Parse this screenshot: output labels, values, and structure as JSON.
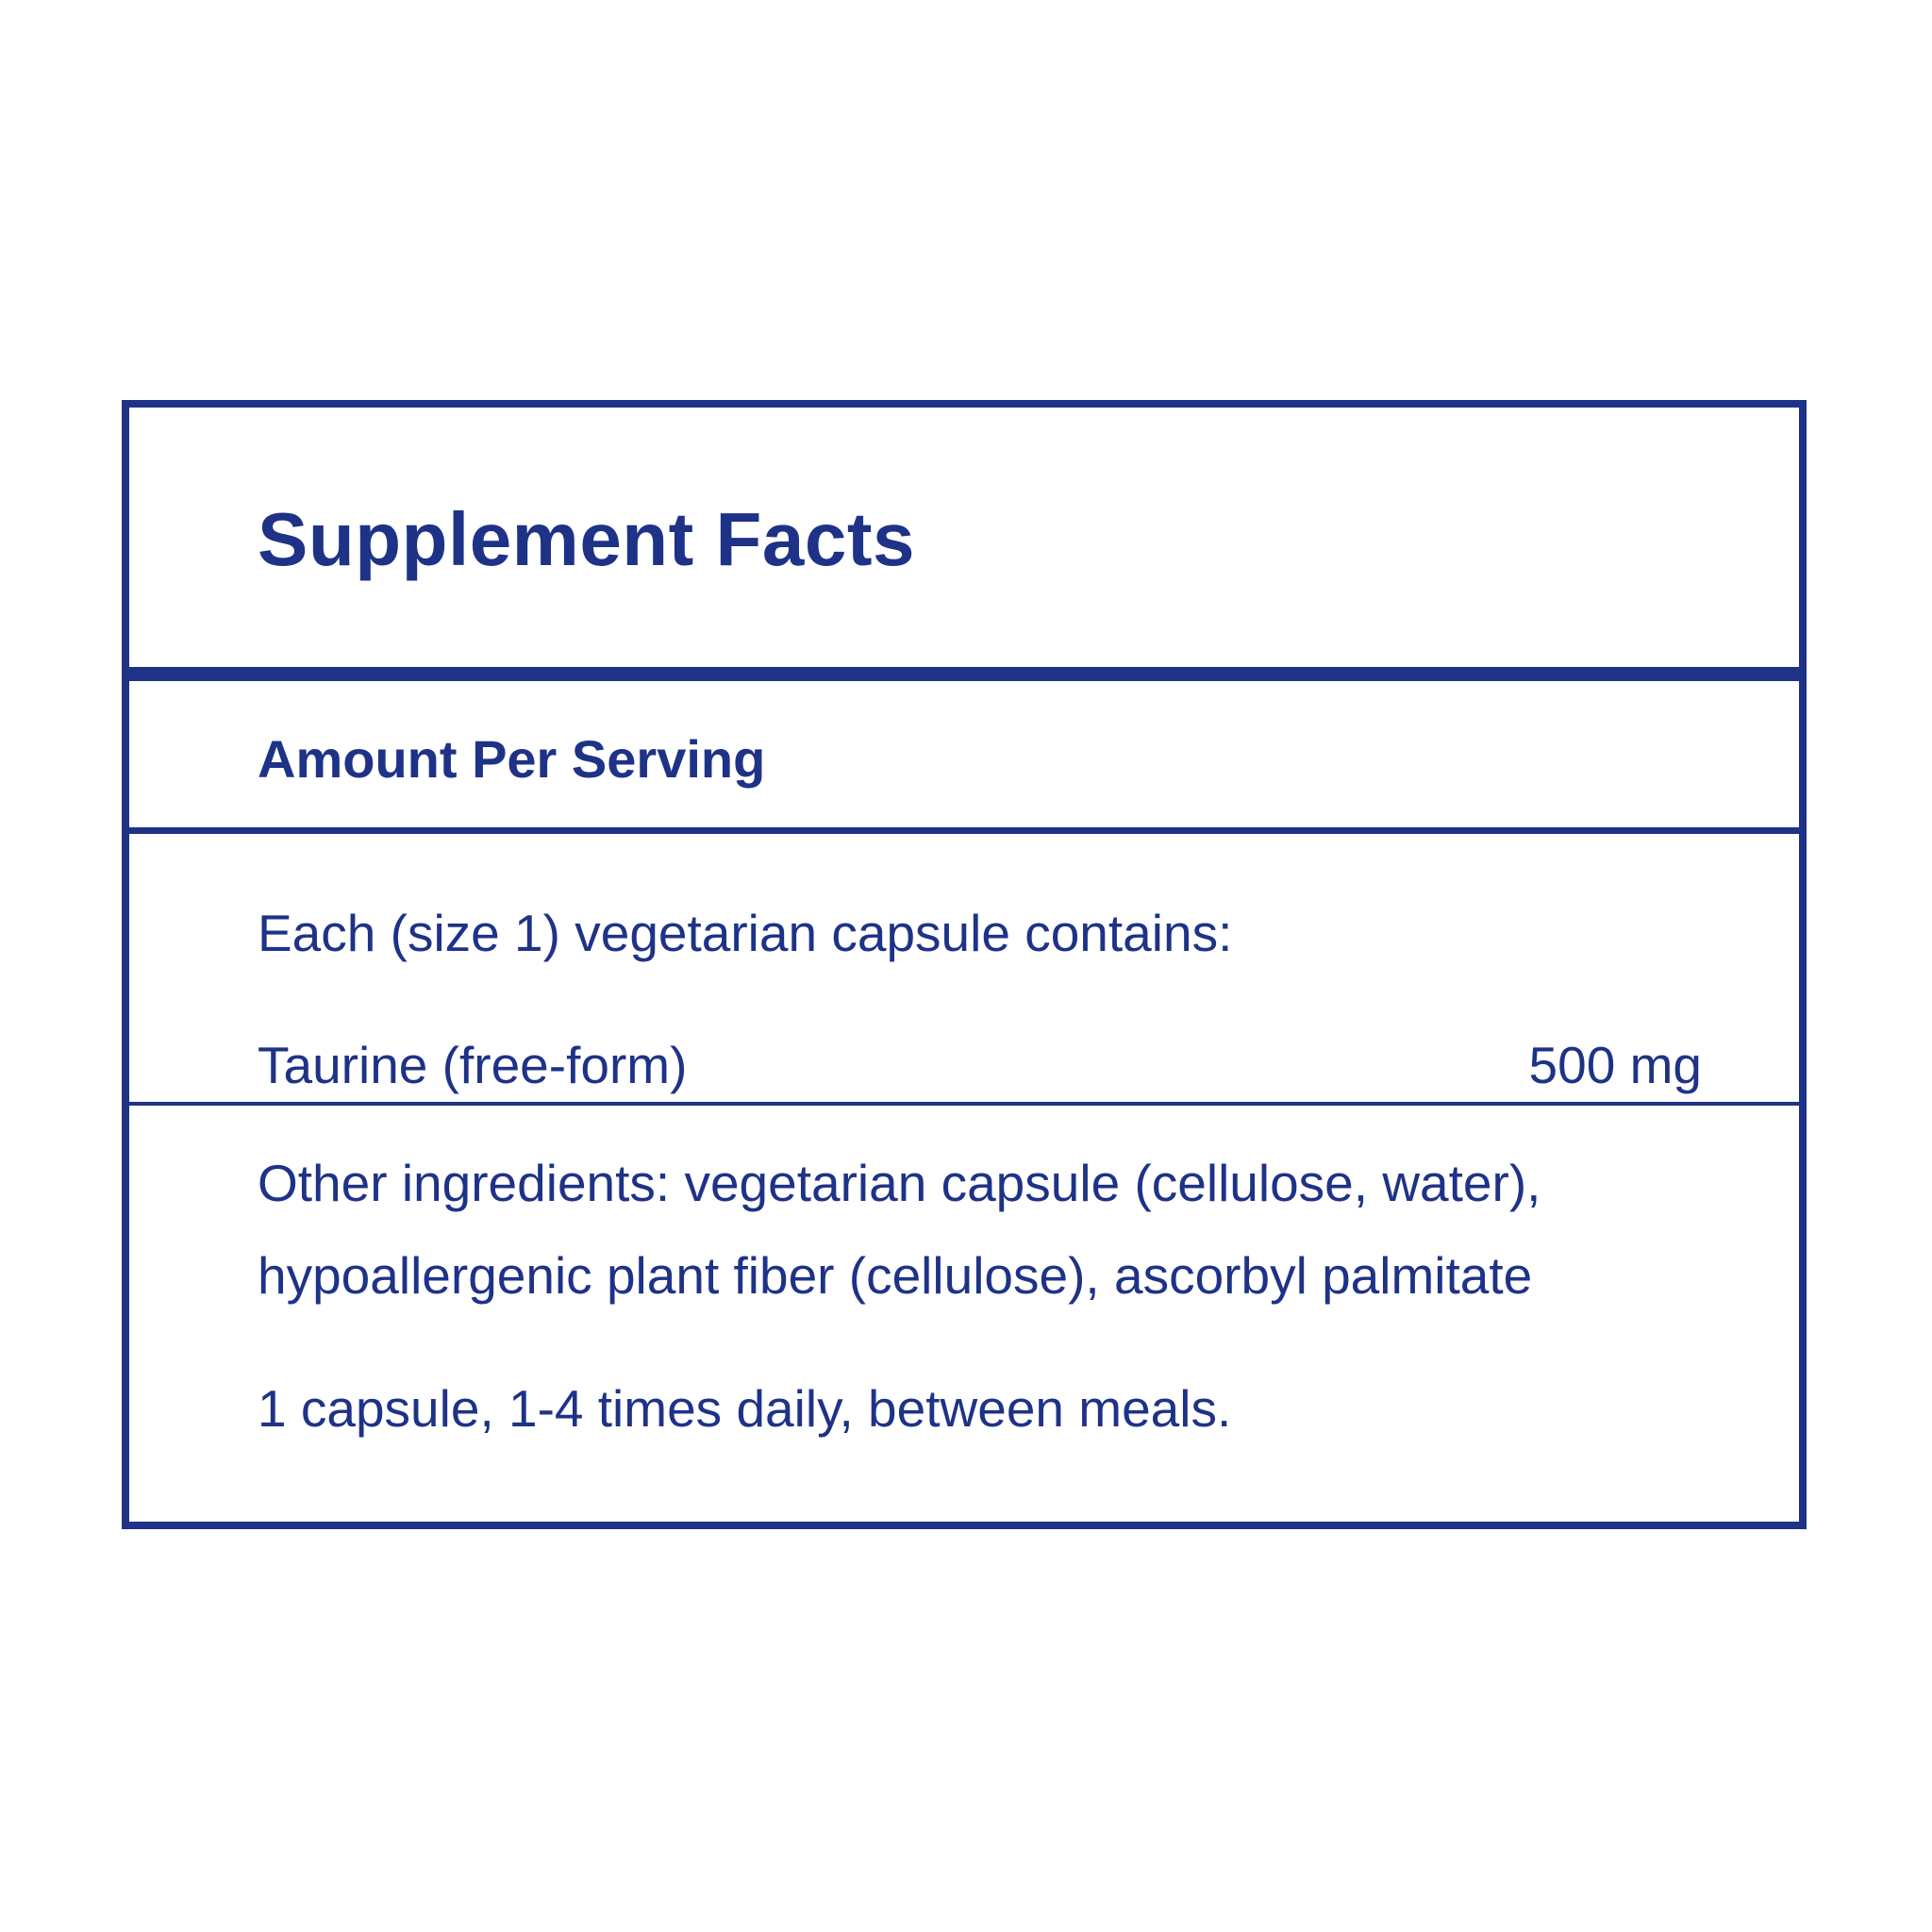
{
  "panel": {
    "title": "Supplement Facts",
    "amount_per_serving": "Amount Per Serving",
    "serving_description": "Each (size 1) vegetarian capsule contains:",
    "ingredients": [
      {
        "name": "Taurine (free-form)",
        "amount": "500 mg"
      }
    ],
    "other_ingredients_line1": "Other ingredients: vegetarian capsule (cellulose, water),",
    "other_ingredients_line2": "hypoallergenic plant fiber (cellulose), ascorbyl palmitate",
    "directions": "1 capsule, 1-4 times daily, between meals."
  },
  "colors": {
    "accent": "#1e3287"
  }
}
